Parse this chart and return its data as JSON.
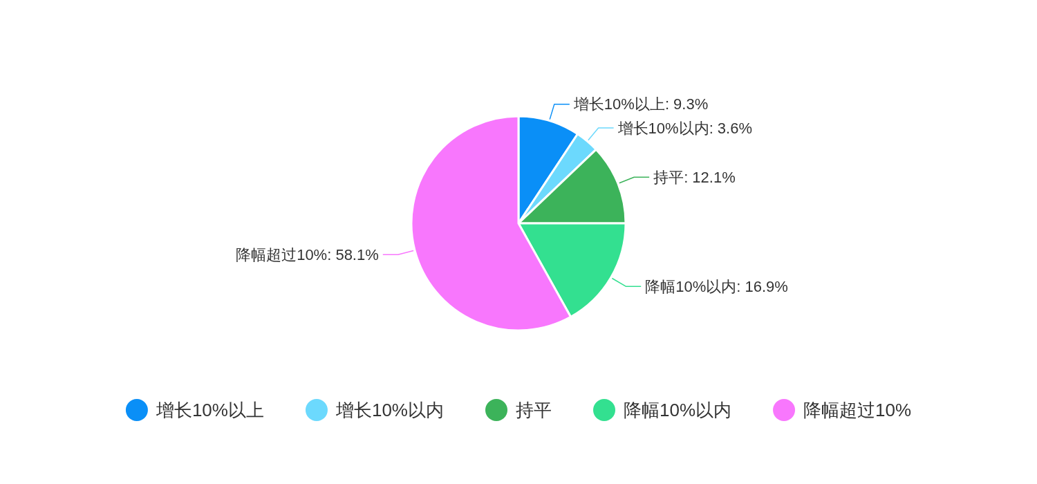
{
  "chart_data": {
    "type": "pie",
    "categories": [
      "增长10%以上",
      "增长10%以内",
      "持平",
      "降幅10%以内",
      "降幅超过10%"
    ],
    "values": [
      9.3,
      3.6,
      12.1,
      16.9,
      58.1
    ],
    "value_labels": [
      "增长10%以上: 9.3%",
      "增长10%以内: 3.6%",
      "持平: 12.1%",
      "降幅10%以内: 16.9%",
      "降幅超过10%: 58.1%"
    ],
    "colors": [
      "#0a8ff7",
      "#6cd9fd",
      "#3cb35a",
      "#33e090",
      "#f877fd"
    ],
    "legend": "bottom"
  }
}
